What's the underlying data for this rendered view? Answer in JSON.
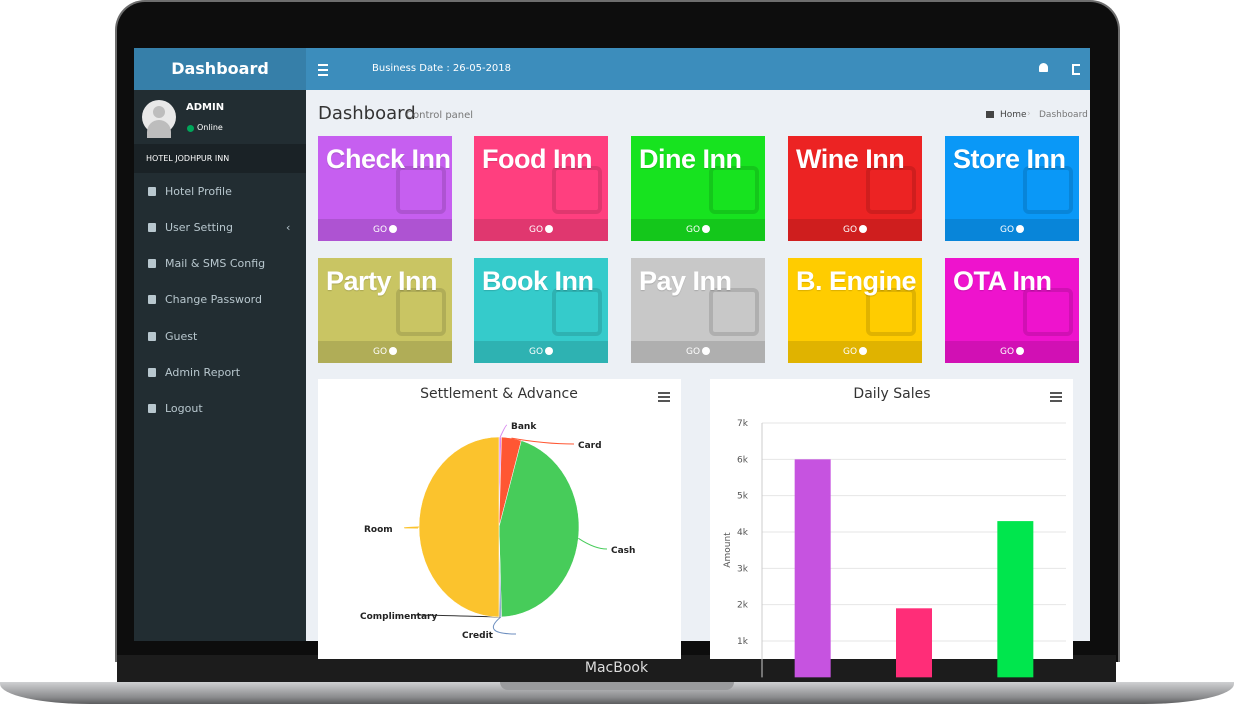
{
  "header": {
    "logo": "Dashboard",
    "business_date": "Business Date : 26-05-2018"
  },
  "user": {
    "name": "ADMIN",
    "status": "Online"
  },
  "hotel": "HOTEL JODHPUR INN",
  "menu": [
    "Hotel Profile",
    "User Setting",
    "Mail & SMS Config",
    "Change Password",
    "Guest",
    "Admin Report",
    "Logout"
  ],
  "page": {
    "title": "Dashboard",
    "subtitle": "Control panel",
    "breadcrumb": [
      "Home",
      "Dashboard"
    ]
  },
  "tiles": [
    {
      "label": "Check Inn",
      "link": "GO",
      "color": "#c65ff0"
    },
    {
      "label": "Food Inn",
      "link": "GO",
      "color": "#ff3f7f"
    },
    {
      "label": "Dine Inn",
      "link": "GO",
      "color": "#17e31f"
    },
    {
      "label": "Wine Inn",
      "link": "GO",
      "color": "#ec2323"
    },
    {
      "label": "Store Inn",
      "link": "GO",
      "color": "#0a98f7"
    },
    {
      "label": "Party Inn",
      "link": "GO",
      "color": "#c9c563"
    },
    {
      "label": "Book Inn",
      "link": "GO",
      "color": "#35cbcb"
    },
    {
      "label": "Pay Inn",
      "link": "GO",
      "color": "#c8c8c8"
    },
    {
      "label": "B. Engine",
      "link": "GO",
      "color": "#ffcc00"
    },
    {
      "label": "OTA Inn",
      "link": "GO",
      "color": "#ee13cd"
    }
  ],
  "charts": [
    {
      "type": "pie",
      "title": "Settlement & Advance",
      "categories": [
        "Bank",
        "Card",
        "Cash",
        "Credit",
        "Complimentary",
        "Room"
      ],
      "values": [
        0.5,
        4,
        45,
        0.3,
        0.2,
        50
      ],
      "colors": [
        "#d98cf0",
        "#ff5733",
        "#47cc5a",
        "#6c8ebf",
        "#333333",
        "#fbc32d"
      ]
    },
    {
      "type": "bar",
      "title": "Daily Sales",
      "y_label": "Amount",
      "categories": [
        null,
        null,
        null
      ],
      "values": [
        6000,
        1900,
        4300
      ],
      "colors": [
        "#c653e0",
        "#ff2d78",
        "#00e64d"
      ],
      "ylim": [
        0,
        7000
      ],
      "yticks": [
        {
          "value": 1000,
          "label": "1k"
        },
        {
          "value": 2000,
          "label": "2k"
        },
        {
          "value": 3000,
          "label": "3k"
        },
        {
          "value": 4000,
          "label": "4k"
        },
        {
          "value": 5000,
          "label": "5k"
        },
        {
          "value": 6000,
          "label": "6k"
        },
        {
          "value": 7000,
          "label": "7k"
        }
      ],
      "grid": true
    }
  ],
  "device": "MacBook"
}
